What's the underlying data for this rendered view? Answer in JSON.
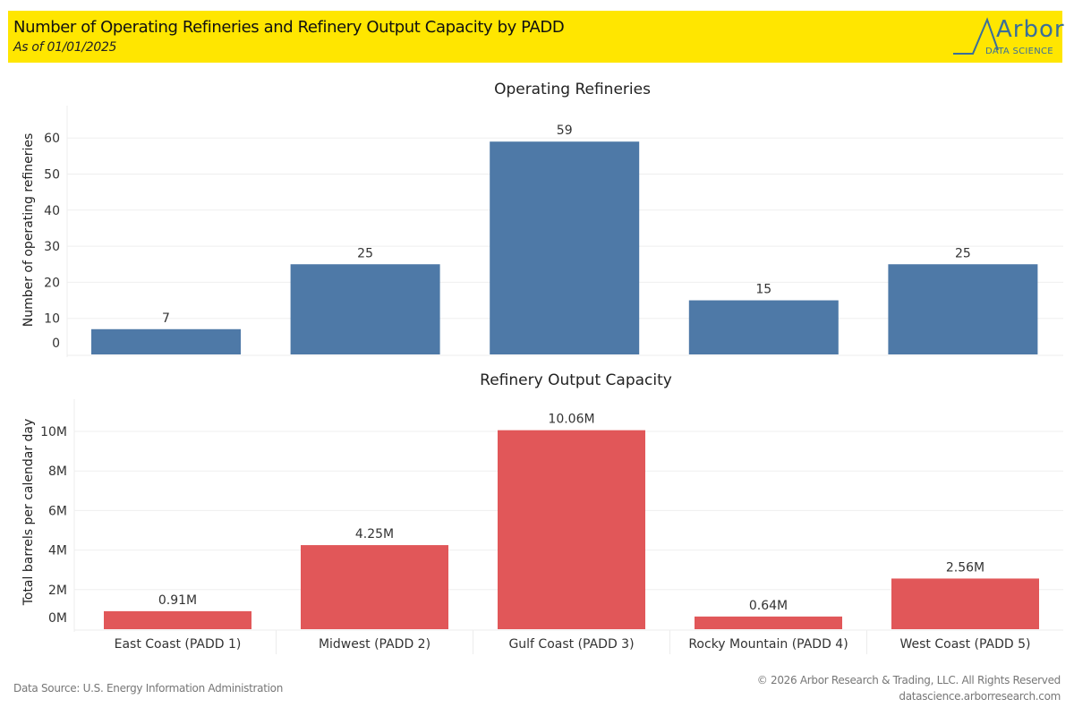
{
  "header": {
    "title": "Number of Operating Refineries and Refinery Output Capacity by PADD",
    "subtitle": "As of 01/01/2025",
    "logo_word": "Arbor",
    "logo_sub": "DATA SCIENCE"
  },
  "colors": {
    "banner": "#ffe600",
    "refineries_bar": "#4e79a7",
    "capacity_bar": "#e15759",
    "logo": "#3a6f9a"
  },
  "chart_data": [
    {
      "type": "bar",
      "title": "Operating Refineries",
      "xlabel": "",
      "ylabel": "Number of operating refineries",
      "categories": [
        "East Coast (PADD 1)",
        "Midwest (PADD 2)",
        "Gulf Coast (PADD 3)",
        "Rocky Mountain (PADD 4)",
        "West Coast (PADD 5)"
      ],
      "values": [
        7,
        25,
        59,
        15,
        25
      ],
      "value_labels": [
        "7",
        "25",
        "59",
        "15",
        "25"
      ],
      "ylim": [
        0,
        68
      ],
      "yticks": [
        0,
        10,
        20,
        30,
        40,
        50,
        60
      ],
      "ytick_labels": [
        "0",
        "10",
        "20",
        "30",
        "40",
        "50",
        "60"
      ],
      "grid": true
    },
    {
      "type": "bar",
      "title": "Refinery Output Capacity",
      "xlabel": "",
      "ylabel": "Total barrels per calendar day",
      "categories": [
        "East Coast (PADD 1)",
        "Midwest (PADD 2)",
        "Gulf Coast (PADD 3)",
        "Rocky Mountain (PADD 4)",
        "West Coast (PADD 5)"
      ],
      "values": [
        0.91,
        4.25,
        10.06,
        0.64,
        2.56
      ],
      "value_labels": [
        "0.91M",
        "4.25M",
        "10.06M",
        "0.64M",
        "2.56M"
      ],
      "ylim": [
        0,
        11.7
      ],
      "yticks": [
        0,
        2,
        4,
        6,
        8,
        10
      ],
      "ytick_labels": [
        "0M",
        "2M",
        "4M",
        "6M",
        "8M",
        "10M"
      ],
      "grid": true
    }
  ],
  "footer": {
    "source": "Data Source: U.S. Energy Information Administration",
    "copyright": "© 2026 Arbor Research & Trading, LLC. All Rights Reserved",
    "website": "datascience.arborresearch.com"
  }
}
